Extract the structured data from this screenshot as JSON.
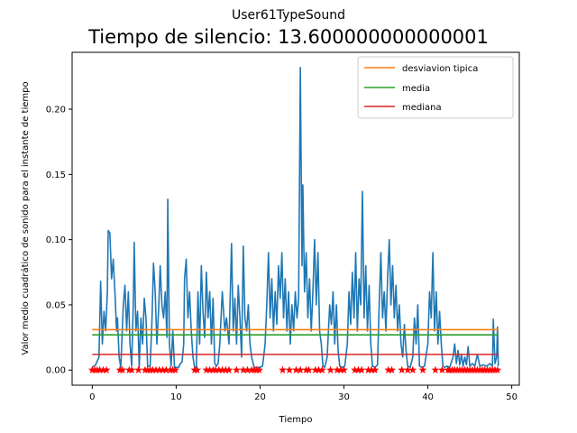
{
  "chart_data": {
    "type": "line",
    "suptitle": "User61TypeSound",
    "title": "Tiempo de silencio: 13.600000000000001",
    "xlabel": "Tiempo",
    "ylabel": "Valor medio cuadrático de sonido para el instante de tiempo",
    "xlim": [
      -2.4,
      50.9
    ],
    "ylim": [
      -0.0116,
      0.2436
    ],
    "xticks": [
      0,
      10,
      20,
      30,
      40,
      50
    ],
    "xtick_labels": [
      "0",
      "10",
      "20",
      "30",
      "40",
      "50"
    ],
    "yticks": [
      0.0,
      0.05,
      0.1,
      0.15,
      0.2
    ],
    "ytick_labels": [
      "0.00",
      "0.05",
      "0.10",
      "0.15",
      "0.20"
    ],
    "grid": false,
    "legend_position": "top-right",
    "colors": {
      "signal": "#1f77b4",
      "desviacion": "#ff7f0e",
      "media": "#2ca02c",
      "mediana": "#d62728",
      "silence_markers": "#ff0000"
    },
    "series": [
      {
        "kind": "signal",
        "points": [
          [
            0.0,
            0.002
          ],
          [
            0.4,
            0.004
          ],
          [
            0.8,
            0.01
          ],
          [
            1.0,
            0.068
          ],
          [
            1.2,
            0.02
          ],
          [
            1.4,
            0.045
          ],
          [
            1.6,
            0.03
          ],
          [
            1.8,
            0.06
          ],
          [
            1.9,
            0.107
          ],
          [
            2.1,
            0.105
          ],
          [
            2.3,
            0.07
          ],
          [
            2.5,
            0.085
          ],
          [
            2.7,
            0.06
          ],
          [
            2.9,
            0.03
          ],
          [
            3.0,
            0.04
          ],
          [
            3.2,
            0.01
          ],
          [
            3.4,
            0.002
          ],
          [
            3.7,
            0.05
          ],
          [
            3.9,
            0.065
          ],
          [
            4.1,
            0.03
          ],
          [
            4.3,
            0.06
          ],
          [
            4.5,
            0.02
          ],
          [
            4.7,
            0.003
          ],
          [
            4.9,
            0.055
          ],
          [
            5.0,
            0.098
          ],
          [
            5.2,
            0.03
          ],
          [
            5.4,
            0.045
          ],
          [
            5.6,
            0.002
          ],
          [
            5.8,
            0.04
          ],
          [
            6.0,
            0.02
          ],
          [
            6.2,
            0.055
          ],
          [
            6.4,
            0.04
          ],
          [
            6.6,
            0.003
          ],
          [
            6.9,
            0.003
          ],
          [
            7.1,
            0.035
          ],
          [
            7.3,
            0.082
          ],
          [
            7.5,
            0.06
          ],
          [
            7.7,
            0.02
          ],
          [
            7.9,
            0.045
          ],
          [
            8.1,
            0.08
          ],
          [
            8.3,
            0.05
          ],
          [
            8.5,
            0.04
          ],
          [
            8.7,
            0.06
          ],
          [
            8.9,
            0.025
          ],
          [
            9.0,
            0.131
          ],
          [
            9.2,
            0.02
          ],
          [
            9.4,
            0.003
          ],
          [
            9.6,
            0.03
          ],
          [
            9.8,
            0.002
          ],
          [
            10.0,
            0.002
          ],
          [
            10.3,
            0.002
          ],
          [
            10.5,
            0.005
          ],
          [
            10.7,
            0.006
          ],
          [
            10.9,
            0.02
          ],
          [
            11.0,
            0.07
          ],
          [
            11.2,
            0.085
          ],
          [
            11.4,
            0.04
          ],
          [
            11.6,
            0.06
          ],
          [
            11.8,
            0.03
          ],
          [
            12.0,
            0.01
          ],
          [
            12.2,
            0.002
          ],
          [
            12.4,
            0.002
          ],
          [
            12.6,
            0.06
          ],
          [
            12.8,
            0.02
          ],
          [
            13.0,
            0.08
          ],
          [
            13.2,
            0.045
          ],
          [
            13.4,
            0.025
          ],
          [
            13.6,
            0.075
          ],
          [
            13.8,
            0.04
          ],
          [
            14.0,
            0.06
          ],
          [
            14.2,
            0.02
          ],
          [
            14.4,
            0.055
          ],
          [
            14.6,
            0.005
          ],
          [
            14.8,
            0.003
          ],
          [
            15.0,
            0.005
          ],
          [
            15.2,
            0.02
          ],
          [
            15.5,
            0.06
          ],
          [
            15.8,
            0.03
          ],
          [
            16.0,
            0.04
          ],
          [
            16.3,
            0.02
          ],
          [
            16.6,
            0.097
          ],
          [
            16.8,
            0.03
          ],
          [
            17.0,
            0.055
          ],
          [
            17.2,
            0.02
          ],
          [
            17.4,
            0.065
          ],
          [
            17.6,
            0.04
          ],
          [
            17.8,
            0.01
          ],
          [
            18.0,
            0.095
          ],
          [
            18.2,
            0.04
          ],
          [
            18.4,
            0.03
          ],
          [
            18.6,
            0.05
          ],
          [
            18.8,
            0.02
          ],
          [
            19.0,
            0.01
          ],
          [
            19.3,
            0.002
          ],
          [
            19.6,
            0.002
          ],
          [
            20.0,
            0.002
          ],
          [
            20.3,
            0.003
          ],
          [
            20.6,
            0.02
          ],
          [
            20.8,
            0.05
          ],
          [
            21.0,
            0.09
          ],
          [
            21.2,
            0.04
          ],
          [
            21.4,
            0.07
          ],
          [
            21.6,
            0.03
          ],
          [
            21.8,
            0.06
          ],
          [
            22.0,
            0.035
          ],
          [
            22.2,
            0.08
          ],
          [
            22.4,
            0.055
          ],
          [
            22.6,
            0.09
          ],
          [
            22.8,
            0.04
          ],
          [
            23.0,
            0.07
          ],
          [
            23.2,
            0.03
          ],
          [
            23.4,
            0.06
          ],
          [
            23.6,
            0.02
          ],
          [
            23.8,
            0.05
          ],
          [
            24.0,
            0.03
          ],
          [
            24.2,
            0.06
          ],
          [
            24.4,
            0.04
          ],
          [
            24.6,
            0.055
          ],
          [
            24.8,
            0.232
          ],
          [
            25.0,
            0.08
          ],
          [
            25.1,
            0.142
          ],
          [
            25.3,
            0.06
          ],
          [
            25.5,
            0.09
          ],
          [
            25.7,
            0.04
          ],
          [
            25.9,
            0.07
          ],
          [
            26.1,
            0.03
          ],
          [
            26.3,
            0.06
          ],
          [
            26.5,
            0.1
          ],
          [
            26.7,
            0.05
          ],
          [
            26.9,
            0.09
          ],
          [
            27.1,
            0.03
          ],
          [
            27.3,
            0.02
          ],
          [
            27.5,
            0.003
          ],
          [
            27.7,
            0.002
          ],
          [
            28.0,
            0.01
          ],
          [
            28.3,
            0.05
          ],
          [
            28.5,
            0.035
          ],
          [
            28.7,
            0.06
          ],
          [
            28.9,
            0.02
          ],
          [
            29.1,
            0.05
          ],
          [
            29.3,
            0.015
          ],
          [
            29.5,
            0.003
          ],
          [
            29.8,
            0.002
          ],
          [
            30.1,
            0.003
          ],
          [
            30.4,
            0.02
          ],
          [
            30.6,
            0.06
          ],
          [
            30.8,
            0.035
          ],
          [
            31.0,
            0.075
          ],
          [
            31.2,
            0.04
          ],
          [
            31.4,
            0.09
          ],
          [
            31.6,
            0.03
          ],
          [
            31.8,
            0.07
          ],
          [
            32.0,
            0.05
          ],
          [
            32.2,
            0.137
          ],
          [
            32.4,
            0.04
          ],
          [
            32.6,
            0.08
          ],
          [
            32.8,
            0.03
          ],
          [
            33.0,
            0.065
          ],
          [
            33.2,
            0.02
          ],
          [
            33.4,
            0.003
          ],
          [
            33.7,
            0.002
          ],
          [
            34.0,
            0.004
          ],
          [
            34.2,
            0.05
          ],
          [
            34.4,
            0.09
          ],
          [
            34.6,
            0.04
          ],
          [
            34.8,
            0.06
          ],
          [
            35.0,
            0.03
          ],
          [
            35.2,
            0.07
          ],
          [
            35.4,
            0.1
          ],
          [
            35.6,
            0.05
          ],
          [
            35.8,
            0.08
          ],
          [
            36.0,
            0.04
          ],
          [
            36.2,
            0.065
          ],
          [
            36.4,
            0.03
          ],
          [
            36.6,
            0.05
          ],
          [
            36.8,
            0.02
          ],
          [
            37.0,
            0.01
          ],
          [
            37.2,
            0.035
          ],
          [
            37.4,
            0.015
          ],
          [
            37.6,
            0.003
          ],
          [
            37.9,
            0.002
          ],
          [
            38.2,
            0.01
          ],
          [
            38.4,
            0.04
          ],
          [
            38.6,
            0.02
          ],
          [
            38.8,
            0.05
          ],
          [
            39.0,
            0.003
          ],
          [
            39.3,
            0.002
          ],
          [
            39.6,
            0.003
          ],
          [
            40.0,
            0.02
          ],
          [
            40.2,
            0.06
          ],
          [
            40.4,
            0.04
          ],
          [
            40.6,
            0.09
          ],
          [
            40.8,
            0.03
          ],
          [
            41.0,
            0.06
          ],
          [
            41.2,
            0.02
          ],
          [
            41.4,
            0.045
          ],
          [
            41.6,
            0.02
          ],
          [
            41.8,
            0.003
          ],
          [
            42.0,
            0.002
          ],
          [
            42.3,
            0.003
          ],
          [
            42.6,
            0.002
          ],
          [
            43.0,
            0.01
          ],
          [
            43.2,
            0.02
          ],
          [
            43.4,
            0.005
          ],
          [
            43.6,
            0.015
          ],
          [
            43.8,
            0.004
          ],
          [
            44.0,
            0.012
          ],
          [
            44.2,
            0.003
          ],
          [
            44.4,
            0.01
          ],
          [
            44.6,
            0.004
          ],
          [
            44.8,
            0.018
          ],
          [
            45.0,
            0.003
          ],
          [
            45.3,
            0.005
          ],
          [
            45.6,
            0.003
          ],
          [
            45.9,
            0.012
          ],
          [
            46.2,
            0.003
          ],
          [
            46.6,
            0.004
          ],
          [
            47.0,
            0.003
          ],
          [
            47.4,
            0.005
          ],
          [
            47.7,
            0.003
          ],
          [
            47.8,
            0.039
          ],
          [
            48.0,
            0.005
          ],
          [
            48.2,
            0.01
          ],
          [
            48.3,
            0.033
          ],
          [
            48.4,
            0.003
          ]
        ]
      },
      {
        "kind": "constant",
        "name": "desviavion tipica",
        "y": 0.031
      },
      {
        "kind": "constant",
        "name": "media",
        "y": 0.027
      },
      {
        "kind": "constant",
        "name": "mediana",
        "y": 0.012
      },
      {
        "kind": "markers",
        "y": 0.0,
        "x": [
          0.0,
          0.3,
          0.6,
          0.9,
          1.3,
          1.7,
          3.3,
          3.6,
          4.4,
          4.7,
          5.5,
          6.3,
          6.6,
          6.9,
          7.2,
          7.6,
          8.0,
          8.4,
          8.8,
          9.3,
          9.6,
          9.9,
          12.2,
          12.5,
          13.6,
          14.0,
          14.4,
          14.7,
          15.1,
          15.5,
          15.9,
          16.3,
          17.2,
          18.0,
          18.5,
          19.0,
          19.3,
          19.6,
          19.9,
          22.7,
          23.5,
          24.3,
          24.8,
          25.5,
          25.8,
          26.6,
          27.0,
          27.4,
          28.4,
          29.2,
          29.6,
          30.0,
          31.3,
          31.7,
          32.1,
          32.9,
          33.3,
          33.7,
          35.3,
          35.7,
          36.9,
          37.6,
          38.2,
          39.4,
          40.9,
          41.7,
          42.4,
          42.6,
          42.9,
          43.2,
          43.5,
          43.8,
          44.1,
          44.4,
          44.7,
          45.0,
          45.3,
          45.6,
          45.9,
          46.2,
          46.5,
          46.8,
          47.1,
          47.4,
          47.7,
          48.0,
          48.3
        ]
      }
    ]
  }
}
